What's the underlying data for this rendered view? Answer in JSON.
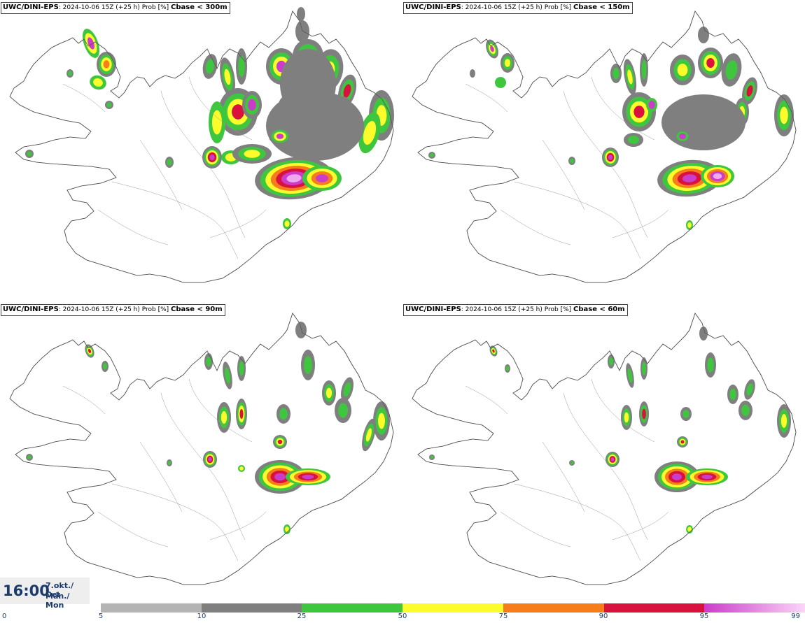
{
  "panels": [
    {
      "source": "UWC/DINI-EPS",
      "info": ": 2024-10-06 15Z (+25 h) Prob [%] ",
      "variable": "Cbase < 300m"
    },
    {
      "source": "UWC/DINI-EPS",
      "info": ": 2024-10-06 15Z (+25 h) Prob [%] ",
      "variable": "Cbase < 150m"
    },
    {
      "source": "UWC/DINI-EPS",
      "info": ": 2024-10-06 15Z (+25 h) Prob [%] ",
      "variable": "Cbase < 90m"
    },
    {
      "source": "UWC/DINI-EPS",
      "info": ": 2024-10-06 15Z (+25 h) Prob [%] ",
      "variable": "Cbase < 60m"
    }
  ],
  "timebox": {
    "time": "16:00",
    "date_line1": "7.okt./ Oct",
    "date_line2": "Mán./ Mon"
  },
  "legend": {
    "ticks": [
      "0",
      "5",
      "10",
      "25",
      "50",
      "75",
      "90",
      "95",
      "99"
    ],
    "colors": [
      "#b4b4b4",
      "#7f7f7f",
      "#3fc63f",
      "#fcfc2c",
      "#f77c1a",
      "#d8123d",
      "#cb3ccb"
    ],
    "last_gradient_end": "#fbd5f7"
  },
  "probability_colors": {
    "p10": "#7f7f7f",
    "p25": "#3fc63f",
    "p50": "#fcfc2c",
    "p75": "#f77c1a",
    "p90": "#d8123d",
    "p95": "#cb3ccb",
    "p99": "#f0a8ee"
  }
}
